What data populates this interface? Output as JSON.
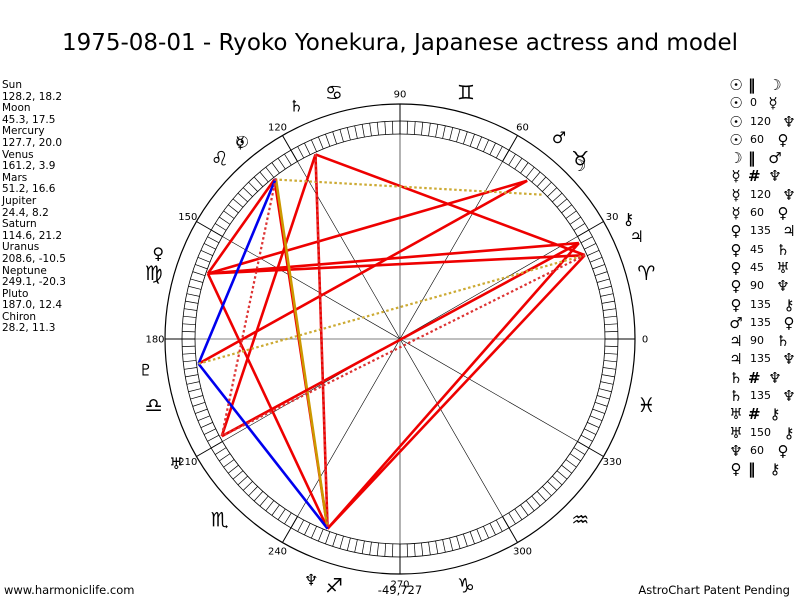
{
  "title": "1975-08-01 - Ryoko Yonekura, Japanese actress and model",
  "planets": [
    {
      "name": "Sun",
      "lon": 128.2,
      "lat": 18.2,
      "pos": "128.2, 18.2",
      "glyph": "☉"
    },
    {
      "name": "Moon",
      "lon": 45.3,
      "lat": 17.5,
      "pos": "45.3, 17.5",
      "glyph": "☽"
    },
    {
      "name": "Mercury",
      "lon": 127.7,
      "lat": 20.0,
      "pos": "127.7, 20.0",
      "glyph": "☿"
    },
    {
      "name": "Venus",
      "lon": 161.2,
      "lat": 3.9,
      "pos": "161.2, 3.9",
      "glyph": "♀"
    },
    {
      "name": "Mars",
      "lon": 51.2,
      "lat": 16.6,
      "pos": "51.2, 16.6",
      "glyph": "♂"
    },
    {
      "name": "Jupiter",
      "lon": 24.4,
      "lat": 8.2,
      "pos": "24.4, 8.2",
      "glyph": "♃"
    },
    {
      "name": "Saturn",
      "lon": 114.6,
      "lat": 21.2,
      "pos": "114.6, 21.2",
      "glyph": "♄"
    },
    {
      "name": "Uranus",
      "lon": 208.6,
      "lat": -10.5,
      "pos": "208.6, -10.5",
      "glyph": "♅"
    },
    {
      "name": "Neptune",
      "lon": 249.1,
      "lat": -20.3,
      "pos": "249.1, -20.3",
      "glyph": "♆"
    },
    {
      "name": "Pluto",
      "lon": 187.0,
      "lat": 12.4,
      "pos": "187.0, 12.4",
      "glyph": "♇"
    },
    {
      "name": "Chiron",
      "lon": 28.2,
      "lat": 11.3,
      "pos": "28.2, 11.3",
      "glyph": "⚷"
    }
  ],
  "degree_labels": [
    {
      "deg": 0,
      "text": "0"
    },
    {
      "deg": 30,
      "text": "30"
    },
    {
      "deg": 60,
      "text": "60"
    },
    {
      "deg": 90,
      "text": "90"
    },
    {
      "deg": 120,
      "text": "120"
    },
    {
      "deg": 150,
      "text": "150"
    },
    {
      "deg": 180,
      "text": "180"
    },
    {
      "deg": 210,
      "text": "210"
    },
    {
      "deg": 240,
      "text": "240"
    },
    {
      "deg": 270,
      "text": "270"
    },
    {
      "deg": 300,
      "text": "300"
    },
    {
      "deg": 330,
      "text": "330"
    }
  ],
  "signs": [
    {
      "name": "aries",
      "glyph": "♈",
      "deg": 15
    },
    {
      "name": "taurus",
      "glyph": "♉",
      "deg": 45
    },
    {
      "name": "gemini",
      "glyph": "♊",
      "deg": 75
    },
    {
      "name": "cancer",
      "glyph": "♋",
      "deg": 105
    },
    {
      "name": "leo",
      "glyph": "♌",
      "deg": 135
    },
    {
      "name": "virgo",
      "glyph": "♍",
      "deg": 165
    },
    {
      "name": "libra",
      "glyph": "♎",
      "deg": 195
    },
    {
      "name": "scorpio",
      "glyph": "♏",
      "deg": 225
    },
    {
      "name": "sagittarius",
      "glyph": "♐",
      "deg": 255
    },
    {
      "name": "capricorn",
      "glyph": "♑",
      "deg": 285
    },
    {
      "name": "aquarius",
      "glyph": "♒",
      "deg": 315
    },
    {
      "name": "pisces",
      "glyph": "♓",
      "deg": 345
    }
  ],
  "aspects_chart": [
    {
      "p1": "Sun",
      "p2": "Neptune",
      "color": "#ee0000",
      "style": "solid"
    },
    {
      "p1": "Sun",
      "p2": "Venus",
      "color": "#ee0000",
      "style": "solid"
    },
    {
      "p1": "Saturn",
      "p2": "Neptune",
      "color": "#ee0000",
      "style": "solid"
    },
    {
      "p1": "Saturn",
      "p2": "Jupiter",
      "color": "#ee0000",
      "style": "solid"
    },
    {
      "p1": "Saturn",
      "p2": "Uranus",
      "color": "#ee0000",
      "style": "solid"
    },
    {
      "p1": "Venus",
      "p2": "Jupiter",
      "color": "#ee0000",
      "style": "solid"
    },
    {
      "p1": "Venus",
      "p2": "Chiron",
      "color": "#ee0000",
      "style": "solid"
    },
    {
      "p1": "Venus",
      "p2": "Mars",
      "color": "#ee0000",
      "style": "solid"
    },
    {
      "p1": "Venus",
      "p2": "Neptune",
      "color": "#ee0000",
      "style": "solid"
    },
    {
      "p1": "Mars",
      "p2": "Pluto",
      "color": "#ee0000",
      "style": "solid"
    },
    {
      "p1": "Mercury",
      "p2": "Neptune",
      "color": "#cc9900",
      "style": "solid"
    },
    {
      "p1": "Jupiter",
      "p2": "Neptune",
      "color": "#ee0000",
      "style": "solid"
    },
    {
      "p1": "Neptune",
      "p2": "Chiron",
      "color": "#ee0000",
      "style": "solid"
    },
    {
      "p1": "Chiron",
      "p2": "Uranus",
      "color": "#ee0000",
      "style": "solid"
    },
    {
      "p1": "Mercury",
      "p2": "Pluto",
      "color": "#0000ee",
      "style": "solid"
    },
    {
      "p1": "Pluto",
      "p2": "Neptune",
      "color": "#0000ee",
      "style": "solid"
    },
    {
      "p1": "Sun",
      "p2": "Moon",
      "color": "#ccaa33",
      "style": "dotted"
    },
    {
      "p1": "Pluto",
      "p2": "Jupiter",
      "color": "#ccaa33",
      "style": "dotted"
    },
    {
      "p1": "Jupiter",
      "p2": "Uranus",
      "color": "#dd3333",
      "style": "dotted"
    },
    {
      "p1": "Mercury",
      "p2": "Uranus",
      "color": "#dd3333",
      "style": "dotted"
    },
    {
      "p1": "Saturn",
      "p2": "Neptune",
      "color": "#dd3333",
      "style": "dotted"
    }
  ],
  "aspect_list": [
    {
      "a": "☉",
      "angle": "‖",
      "b": "☽",
      "conj": true
    },
    {
      "a": "☉",
      "angle": "0",
      "b": "☿"
    },
    {
      "a": "☉",
      "angle": "120",
      "b": "♆"
    },
    {
      "a": "☉",
      "angle": "60",
      "b": "♀"
    },
    {
      "a": "☽",
      "angle": "‖",
      "b": "♂",
      "conj": true
    },
    {
      "a": "☿",
      "angle": "#",
      "b": "♆",
      "conj": true
    },
    {
      "a": "☿",
      "angle": "120",
      "b": "♆"
    },
    {
      "a": "☿",
      "angle": "60",
      "b": "♀"
    },
    {
      "a": "♀",
      "angle": "135",
      "b": "♃"
    },
    {
      "a": "♀",
      "angle": "45",
      "b": "♄"
    },
    {
      "a": "♀",
      "angle": "45",
      "b": "♅"
    },
    {
      "a": "♀",
      "angle": "90",
      "b": "♆"
    },
    {
      "a": "♀",
      "angle": "135",
      "b": "⚷"
    },
    {
      "a": "♂",
      "angle": "135",
      "b": "♀"
    },
    {
      "a": "♃",
      "angle": "90",
      "b": "♄"
    },
    {
      "a": "♃",
      "angle": "135",
      "b": "♆"
    },
    {
      "a": "♄",
      "angle": "#",
      "b": "♆",
      "conj": true
    },
    {
      "a": "♄",
      "angle": "135",
      "b": "♆"
    },
    {
      "a": "♅",
      "angle": "#",
      "b": "⚷",
      "conj": true
    },
    {
      "a": "♅",
      "angle": "150",
      "b": "⚷"
    },
    {
      "a": "♆",
      "angle": "60",
      "b": "♀"
    },
    {
      "a": "♀",
      "angle": "‖",
      "b": "⚷",
      "conj": true
    }
  ],
  "footer": {
    "left": "www.harmoniclife.com",
    "center": "-49,727",
    "right": "AstroChart Patent Pending"
  },
  "colors": {
    "aspect_red": "#ee0000",
    "aspect_blue": "#0000ee",
    "aspect_gold": "#cc9900"
  }
}
